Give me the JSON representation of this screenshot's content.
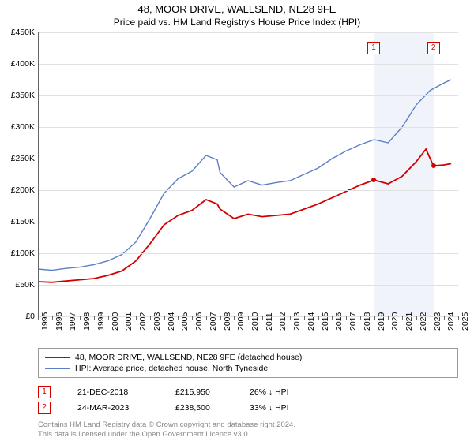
{
  "title": "48, MOOR DRIVE, WALLSEND, NE28 9FE",
  "subtitle": "Price paid vs. HM Land Registry's House Price Index (HPI)",
  "chart": {
    "type": "line",
    "ylim": [
      0,
      450000
    ],
    "ytick_step": 50000,
    "ytick_labels": [
      "£0",
      "£50K",
      "£100K",
      "£150K",
      "£200K",
      "£250K",
      "£300K",
      "£350K",
      "£400K",
      "£450K"
    ],
    "xlim": [
      1995,
      2025
    ],
    "xtick_step": 1,
    "xtick_labels": [
      "1995",
      "1996",
      "1997",
      "1998",
      "1999",
      "2000",
      "2001",
      "2002",
      "2003",
      "2004",
      "2005",
      "2006",
      "2007",
      "2008",
      "2009",
      "2010",
      "2011",
      "2012",
      "2013",
      "2014",
      "2015",
      "2016",
      "2017",
      "2018",
      "2019",
      "2020",
      "2021",
      "2022",
      "2023",
      "2024",
      "2025"
    ],
    "background_color": "#ffffff",
    "grid_color": "#e0e0e0",
    "axis_color": "#666666",
    "label_fontsize": 10.5,
    "title_fontsize": 13,
    "highlight_band": {
      "from_x": 2018.97,
      "to_x": 2023.23,
      "color": "#f0f4fa"
    },
    "series": [
      {
        "name": "price_paid",
        "label": "48, MOOR DRIVE, WALLSEND, NE28 9FE (detached house)",
        "color": "#d40000",
        "width": 1.8,
        "data": [
          [
            1995,
            55000
          ],
          [
            1996,
            54000
          ],
          [
            1997,
            56000
          ],
          [
            1998,
            58000
          ],
          [
            1999,
            60000
          ],
          [
            2000,
            65000
          ],
          [
            2001,
            72000
          ],
          [
            2002,
            88000
          ],
          [
            2003,
            115000
          ],
          [
            2004,
            145000
          ],
          [
            2005,
            160000
          ],
          [
            2006,
            168000
          ],
          [
            2007,
            185000
          ],
          [
            2007.8,
            178000
          ],
          [
            2008,
            170000
          ],
          [
            2009,
            155000
          ],
          [
            2010,
            162000
          ],
          [
            2011,
            158000
          ],
          [
            2012,
            160000
          ],
          [
            2013,
            162000
          ],
          [
            2014,
            170000
          ],
          [
            2015,
            178000
          ],
          [
            2016,
            188000
          ],
          [
            2017,
            198000
          ],
          [
            2018,
            208000
          ],
          [
            2018.97,
            215950
          ],
          [
            2019,
            216000
          ],
          [
            2020,
            210000
          ],
          [
            2021,
            222000
          ],
          [
            2022,
            245000
          ],
          [
            2022.7,
            265000
          ],
          [
            2023,
            250000
          ],
          [
            2023.23,
            238500
          ],
          [
            2024,
            240000
          ],
          [
            2024.5,
            242000
          ]
        ],
        "markers": [
          {
            "x": 2018.97,
            "y": 215950
          },
          {
            "x": 2023.23,
            "y": 238500
          }
        ]
      },
      {
        "name": "hpi",
        "label": "HPI: Average price, detached house, North Tyneside",
        "color": "#5b7fc7",
        "width": 1.4,
        "data": [
          [
            1995,
            75000
          ],
          [
            1996,
            73000
          ],
          [
            1997,
            76000
          ],
          [
            1998,
            78000
          ],
          [
            1999,
            82000
          ],
          [
            2000,
            88000
          ],
          [
            2001,
            98000
          ],
          [
            2002,
            118000
          ],
          [
            2003,
            155000
          ],
          [
            2004,
            195000
          ],
          [
            2005,
            218000
          ],
          [
            2006,
            230000
          ],
          [
            2007,
            255000
          ],
          [
            2007.8,
            248000
          ],
          [
            2008,
            228000
          ],
          [
            2009,
            205000
          ],
          [
            2010,
            215000
          ],
          [
            2011,
            208000
          ],
          [
            2012,
            212000
          ],
          [
            2013,
            215000
          ],
          [
            2014,
            225000
          ],
          [
            2015,
            235000
          ],
          [
            2016,
            250000
          ],
          [
            2017,
            262000
          ],
          [
            2018,
            272000
          ],
          [
            2019,
            280000
          ],
          [
            2020,
            275000
          ],
          [
            2021,
            300000
          ],
          [
            2022,
            335000
          ],
          [
            2023,
            358000
          ],
          [
            2024,
            370000
          ],
          [
            2024.5,
            375000
          ]
        ]
      }
    ],
    "reference_lines": [
      {
        "id": "1",
        "x": 2018.97,
        "color": "#d40000"
      },
      {
        "id": "2",
        "x": 2023.23,
        "color": "#d40000"
      }
    ]
  },
  "legend": {
    "border_color": "#999999"
  },
  "sales": [
    {
      "num": "1",
      "date": "21-DEC-2018",
      "price": "£215,950",
      "pct": "26% ↓ HPI",
      "num_color": "#d40000"
    },
    {
      "num": "2",
      "date": "24-MAR-2023",
      "price": "£238,500",
      "pct": "33% ↓ HPI",
      "num_color": "#d40000"
    }
  ],
  "attribution_line1": "Contains HM Land Registry data © Crown copyright and database right 2024.",
  "attribution_line2": "This data is licensed under the Open Government Licence v3.0."
}
